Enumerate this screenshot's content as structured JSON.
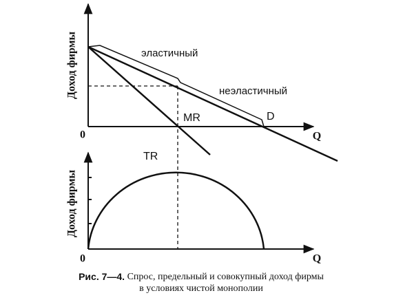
{
  "top_panel": {
    "y_label": "Доход фирмы",
    "origin": "0",
    "x_label": "Q",
    "elastic_label": "эластичный",
    "inelastic_label": "неэластичный",
    "mr_label": "MR",
    "d_label": "D"
  },
  "bottom_panel": {
    "y_label": "Доход фирмы",
    "origin": "0",
    "x_label": "Q",
    "tr_label": "TR"
  },
  "caption": {
    "number": "Рис. 7—4.",
    "line1": "Спрос, предельный и совокупный доход фирмы",
    "line2": "в условиях чистой монополии"
  }
}
